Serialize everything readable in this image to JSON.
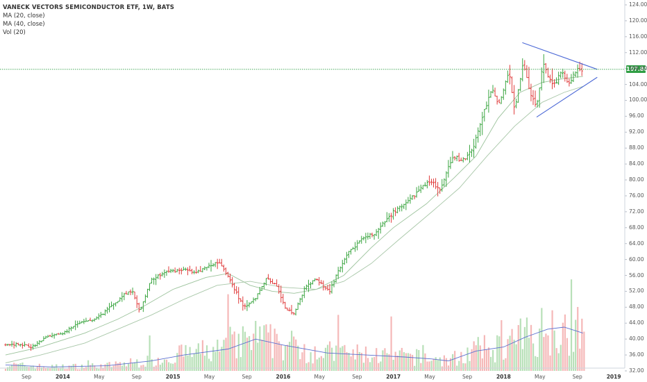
{
  "legend": {
    "title": "VANECK VECTORS SEMICONDUCTOR ETF, 1W, BATS",
    "ma20": "MA (20, close)",
    "ma40": "MA (40, close)",
    "vol": "Vol (20)"
  },
  "price_tag": "107.80",
  "colors": {
    "up": "#3aa540",
    "down": "#e03c3c",
    "ma20": "#9bc29b",
    "ma40": "#a8c7a8",
    "vol_ma": "#5b6fd0",
    "triangle": "#4a67d6",
    "last_price": "#2f9e44",
    "vol_up": "#b8e0b8",
    "vol_down": "#f5b8b8"
  },
  "chart_data": {
    "type": "ohlc",
    "title": "VANECK VECTORS SEMICONDUCTOR ETF, 1W, BATS",
    "x_axis_labels": [
      {
        "label": "Sep",
        "x": 2013.67
      },
      {
        "label": "2014",
        "x": 2014.0
      },
      {
        "label": "May",
        "x": 2014.33
      },
      {
        "label": "Sep",
        "x": 2014.67
      },
      {
        "label": "2015",
        "x": 2015.0
      },
      {
        "label": "May",
        "x": 2015.33
      },
      {
        "label": "Sep",
        "x": 2015.67
      },
      {
        "label": "2016",
        "x": 2016.0
      },
      {
        "label": "May",
        "x": 2016.33
      },
      {
        "label": "Sep",
        "x": 2016.67
      },
      {
        "label": "2017",
        "x": 2017.0
      },
      {
        "label": "May",
        "x": 2017.33
      },
      {
        "label": "Sep",
        "x": 2017.67
      },
      {
        "label": "2018",
        "x": 2018.0
      },
      {
        "label": "May",
        "x": 2018.33
      },
      {
        "label": "Sep",
        "x": 2018.67
      },
      {
        "label": "2019",
        "x": 2019.0
      }
    ],
    "y_ticks": [
      32,
      36,
      40,
      44,
      48,
      52,
      56,
      60,
      64,
      68,
      72,
      76,
      80,
      84,
      88,
      92,
      96,
      100,
      104,
      108,
      112,
      116,
      120,
      124
    ],
    "ylim": [
      31.5,
      125
    ],
    "last_price": 107.8,
    "price_path": [
      [
        2013.48,
        38.5
      ],
      [
        2013.6,
        38.8
      ],
      [
        2013.72,
        38.0
      ],
      [
        2013.85,
        40.5
      ],
      [
        2014.0,
        41.5
      ],
      [
        2014.15,
        44.0
      ],
      [
        2014.3,
        45.0
      ],
      [
        2014.45,
        48.5
      ],
      [
        2014.55,
        51.0
      ],
      [
        2014.63,
        52.0
      ],
      [
        2014.7,
        47.0
      ],
      [
        2014.8,
        55.0
      ],
      [
        2014.95,
        57.0
      ],
      [
        2015.1,
        57.5
      ],
      [
        2015.2,
        56.5
      ],
      [
        2015.3,
        58.0
      ],
      [
        2015.42,
        59.5
      ],
      [
        2015.52,
        55.0
      ],
      [
        2015.6,
        50.0
      ],
      [
        2015.65,
        48.0
      ],
      [
        2015.75,
        50.5
      ],
      [
        2015.85,
        55.5
      ],
      [
        2015.95,
        53.0
      ],
      [
        2016.02,
        47.5
      ],
      [
        2016.1,
        46.5
      ],
      [
        2016.2,
        53.0
      ],
      [
        2016.3,
        55.0
      ],
      [
        2016.42,
        52.0
      ],
      [
        2016.5,
        57.0
      ],
      [
        2016.6,
        62.0
      ],
      [
        2016.72,
        65.0
      ],
      [
        2016.85,
        67.0
      ],
      [
        2017.0,
        72.0
      ],
      [
        2017.12,
        74.0
      ],
      [
        2017.25,
        78.0
      ],
      [
        2017.35,
        80.0
      ],
      [
        2017.42,
        77.0
      ],
      [
        2017.5,
        83.0
      ],
      [
        2017.55,
        86.0
      ],
      [
        2017.62,
        84.5
      ],
      [
        2017.72,
        88.0
      ],
      [
        2017.82,
        97.0
      ],
      [
        2017.9,
        103.0
      ],
      [
        2017.96,
        99.0
      ],
      [
        2018.05,
        107.0
      ],
      [
        2018.1,
        98.0
      ],
      [
        2018.18,
        110.0
      ],
      [
        2018.22,
        104.0
      ],
      [
        2018.3,
        98.0
      ],
      [
        2018.36,
        109.5
      ],
      [
        2018.45,
        103.0
      ],
      [
        2018.52,
        107.5
      ],
      [
        2018.6,
        104.0
      ],
      [
        2018.66,
        108.0
      ],
      [
        2018.72,
        107.8
      ]
    ],
    "ma20_path": [
      [
        2013.48,
        36.0
      ],
      [
        2013.8,
        38.0
      ],
      [
        2014.2,
        41.5
      ],
      [
        2014.5,
        45.0
      ],
      [
        2014.75,
        48.5
      ],
      [
        2015.0,
        52.5
      ],
      [
        2015.3,
        55.5
      ],
      [
        2015.5,
        56.5
      ],
      [
        2015.7,
        53.5
      ],
      [
        2015.9,
        52.0
      ],
      [
        2016.1,
        51.5
      ],
      [
        2016.3,
        52.5
      ],
      [
        2016.55,
        56.0
      ],
      [
        2016.8,
        63.0
      ],
      [
        2017.0,
        68.0
      ],
      [
        2017.3,
        74.0
      ],
      [
        2017.55,
        80.5
      ],
      [
        2017.75,
        86.0
      ],
      [
        2017.95,
        95.5
      ],
      [
        2018.15,
        102.0
      ],
      [
        2018.35,
        104.5
      ],
      [
        2018.55,
        105.5
      ],
      [
        2018.72,
        106.0
      ]
    ],
    "ma40_path": [
      [
        2013.48,
        34.0
      ],
      [
        2013.8,
        36.0
      ],
      [
        2014.2,
        39.0
      ],
      [
        2014.5,
        42.5
      ],
      [
        2014.8,
        46.0
      ],
      [
        2015.1,
        50.0
      ],
      [
        2015.4,
        53.5
      ],
      [
        2015.7,
        54.5
      ],
      [
        2016.0,
        53.0
      ],
      [
        2016.3,
        52.5
      ],
      [
        2016.55,
        54.5
      ],
      [
        2016.8,
        59.0
      ],
      [
        2017.05,
        65.0
      ],
      [
        2017.35,
        72.0
      ],
      [
        2017.6,
        78.0
      ],
      [
        2017.85,
        86.0
      ],
      [
        2018.1,
        93.5
      ],
      [
        2018.35,
        99.5
      ],
      [
        2018.55,
        102.0
      ],
      [
        2018.72,
        103.5
      ]
    ],
    "vol_ma_path": [
      [
        2013.48,
        33.5
      ],
      [
        2013.9,
        33.0
      ],
      [
        2014.4,
        33.3
      ],
      [
        2014.8,
        34.5
      ],
      [
        2015.1,
        36.0
      ],
      [
        2015.5,
        37.5
      ],
      [
        2015.75,
        40.0
      ],
      [
        2016.0,
        38.5
      ],
      [
        2016.4,
        36.5
      ],
      [
        2016.75,
        36.0
      ],
      [
        2017.1,
        35.5
      ],
      [
        2017.35,
        35.0
      ],
      [
        2017.5,
        34.5
      ],
      [
        2017.75,
        37.0
      ],
      [
        2018.0,
        38.0
      ],
      [
        2018.2,
        40.5
      ],
      [
        2018.4,
        42.5
      ],
      [
        2018.55,
        43.0
      ],
      [
        2018.72,
        41.5
      ]
    ],
    "triangle_upper": [
      [
        2018.17,
        114.5
      ],
      [
        2018.85,
        107.8
      ]
    ],
    "triangle_lower": [
      [
        2018.3,
        95.8
      ],
      [
        2018.85,
        105.8
      ]
    ],
    "volume_range": {
      "start": 2013.48,
      "end": 2018.74,
      "peak": 55,
      "base": 32
    }
  }
}
